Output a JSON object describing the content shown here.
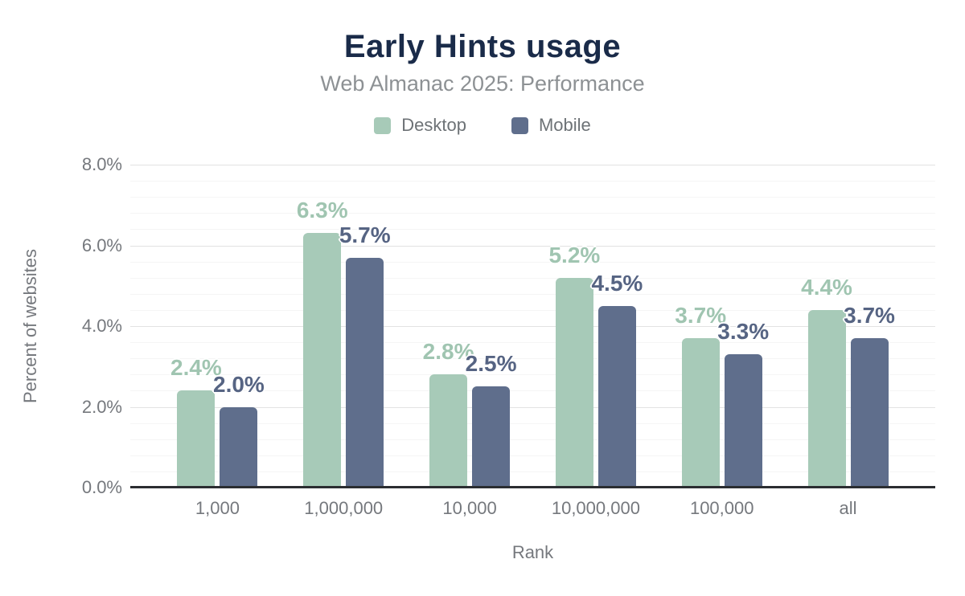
{
  "header": {
    "title": "Early Hints usage",
    "subtitle": "Web Almanac 2025: Performance"
  },
  "legend": {
    "items": [
      {
        "label": "Desktop",
        "color": "#a7cab8"
      },
      {
        "label": "Mobile",
        "color": "#5f6e8c"
      }
    ]
  },
  "chart_data": {
    "type": "bar",
    "title": "Early Hints usage",
    "subtitle": "Web Almanac 2025: Performance",
    "xlabel": "Rank",
    "ylabel": "Percent of websites",
    "categories": [
      "1,000",
      "1,000,000",
      "10,000",
      "10,000,000",
      "100,000",
      "all"
    ],
    "series": [
      {
        "name": "Desktop",
        "color": "#a7cab8",
        "label_color": "#a0c5b1",
        "values": [
          2.4,
          6.3,
          2.8,
          5.2,
          3.7,
          4.4
        ],
        "labels": [
          "2.4%",
          "6.3%",
          "2.8%",
          "5.2%",
          "3.7%",
          "4.4%"
        ]
      },
      {
        "name": "Mobile",
        "color": "#5f6e8c",
        "label_color": "#566483",
        "values": [
          2.0,
          5.7,
          2.5,
          4.5,
          3.3,
          3.7
        ],
        "labels": [
          "2.0%",
          "5.7%",
          "2.5%",
          "4.5%",
          "3.3%",
          "3.7%"
        ]
      }
    ],
    "ylim": [
      0,
      8
    ],
    "yticks": [
      {
        "label": "0.0%",
        "value": 0
      },
      {
        "label": "2.0%",
        "value": 2
      },
      {
        "label": "4.0%",
        "value": 4
      },
      {
        "label": "6.0%",
        "value": 6
      },
      {
        "label": "8.0%",
        "value": 8
      }
    ],
    "grid": true,
    "minor_grid_step": 0.4,
    "major_grid_step": 2.0,
    "legend_position": "top"
  },
  "colors": {
    "title": "#1a2b49",
    "subtitle": "#8d9194",
    "axis_text": "#75787d",
    "axis_line": "#2b2d31",
    "grid_minor": "#f5f5f5",
    "grid_major": "#e2e2e2",
    "background": "#ffffff"
  }
}
